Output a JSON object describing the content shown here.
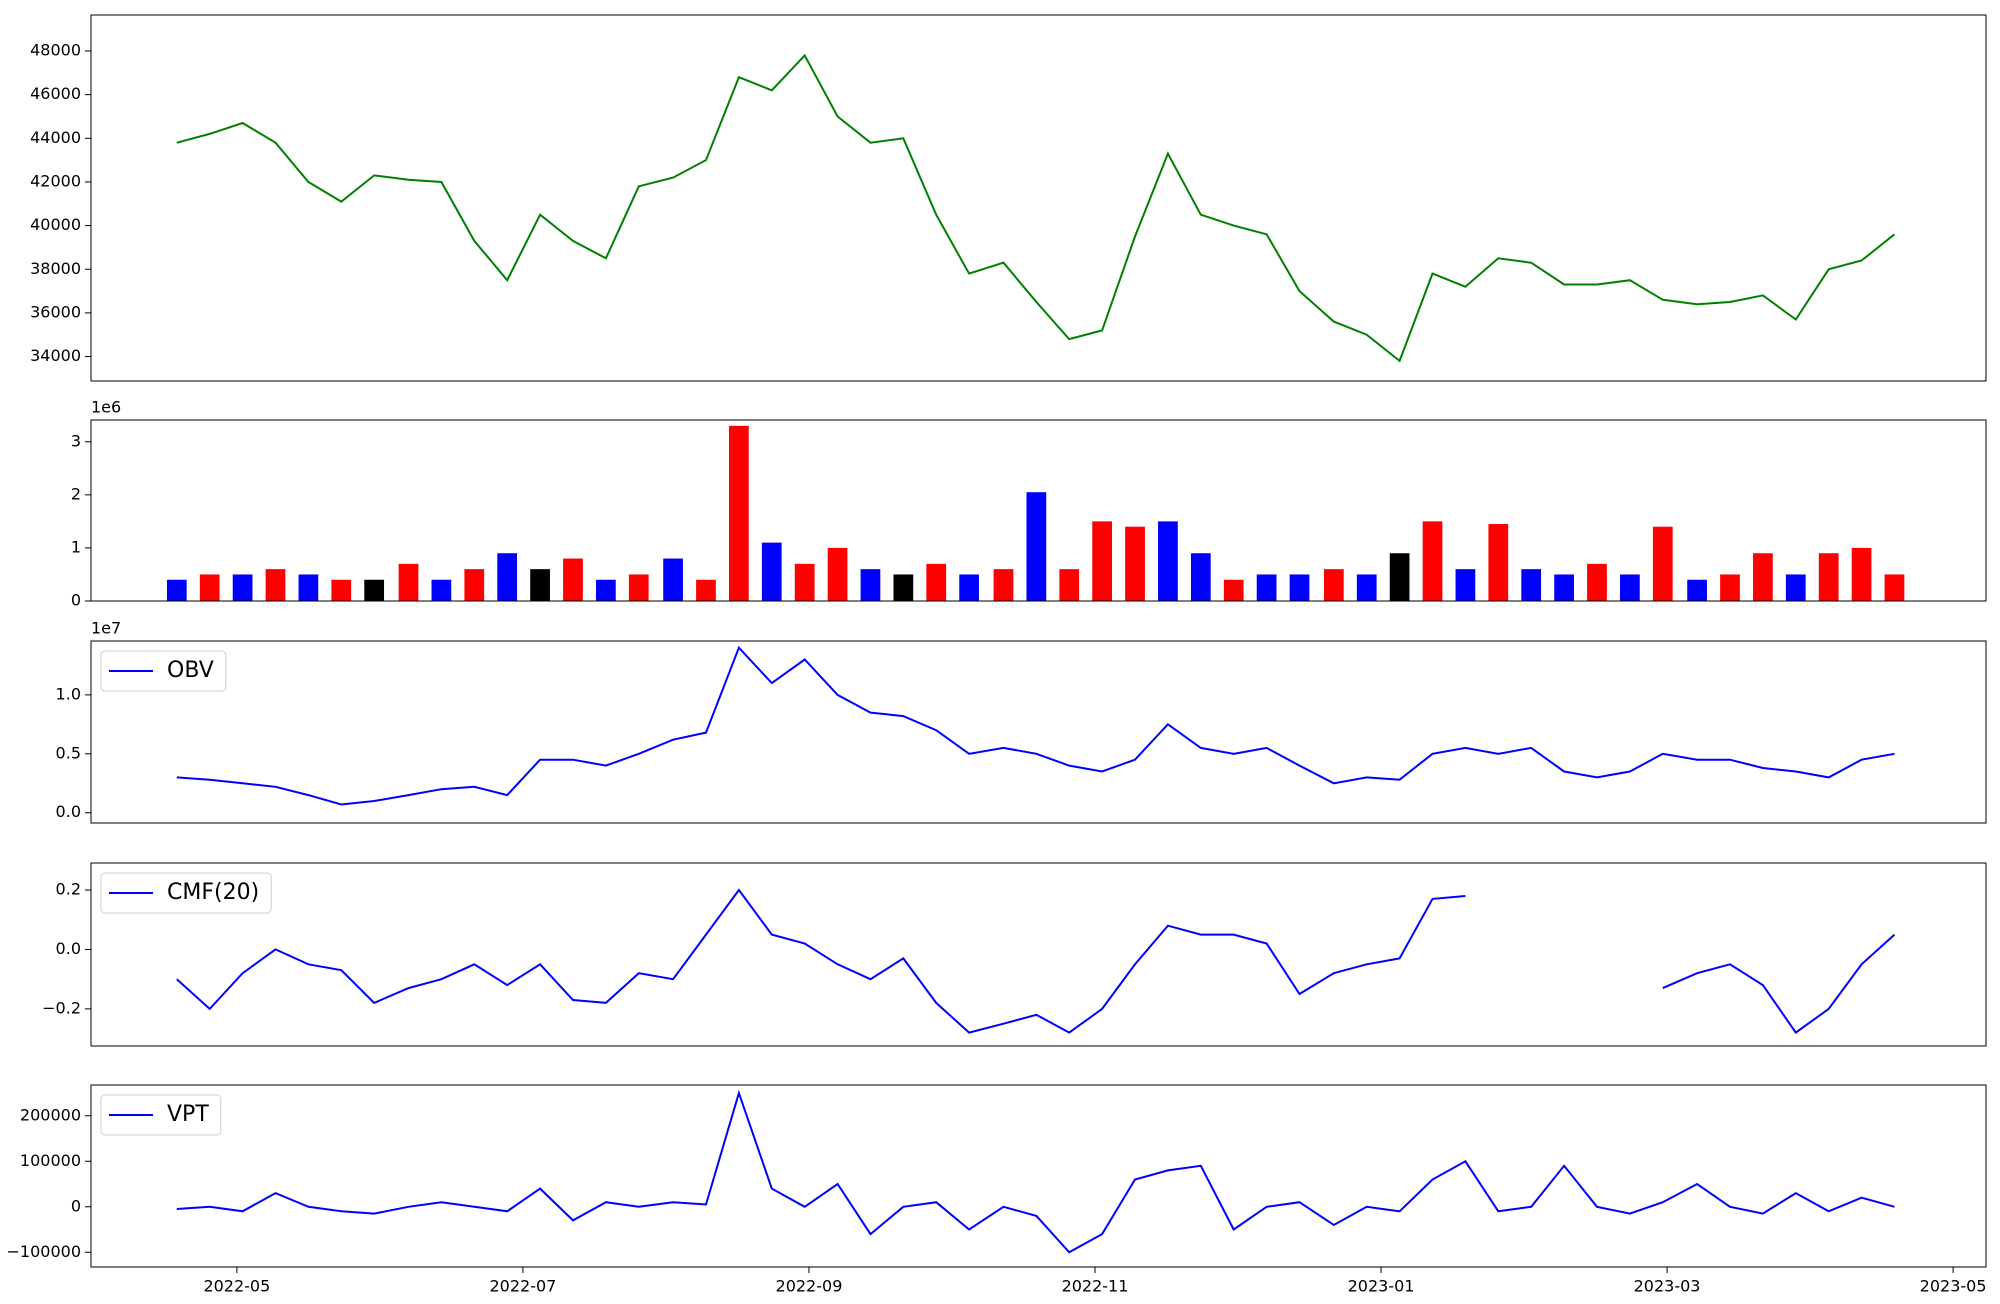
{
  "chart_data": [
    {
      "type": "line",
      "color": "#008000",
      "x": [
        -0.42,
        -0.19,
        0.04,
        0.27,
        0.5,
        0.73,
        0.96,
        1.2,
        1.43,
        1.66,
        1.89,
        2.12,
        2.35,
        2.58,
        2.81,
        3.05,
        3.28,
        3.51,
        3.74,
        3.97,
        4.2,
        4.43,
        4.66,
        4.89,
        5.12,
        5.36,
        5.59,
        5.82,
        6.05,
        6.28,
        6.51,
        6.74,
        6.97,
        7.2,
        7.43,
        7.67,
        7.9,
        8.13,
        8.36,
        8.59,
        8.82,
        9.05,
        9.28,
        9.51,
        9.74,
        9.97,
        10.21,
        10.44,
        10.67,
        10.9,
        11.13,
        11.36,
        11.59
      ],
      "values": [
        43800,
        44200,
        44700,
        43800,
        42000,
        41100,
        42300,
        42100,
        42000,
        39300,
        37500,
        40500,
        39300,
        38500,
        41800,
        42200,
        43000,
        46800,
        46200,
        47800,
        45000,
        43800,
        44000,
        40500,
        37800,
        38300,
        36500,
        34800,
        35200,
        39500,
        43300,
        40500,
        40000,
        39600,
        37000,
        35600,
        35000,
        33800,
        37800,
        37200,
        38500,
        38300,
        37300,
        37300,
        37500,
        36600,
        36400,
        36500,
        36800,
        35700,
        38000,
        38400,
        39600
      ],
      "xlim": [
        -1.02,
        12.23
      ],
      "ylim": [
        32880,
        49650
      ],
      "yticks": [
        34000,
        36000,
        38000,
        40000,
        42000,
        44000,
        46000,
        48000
      ]
    },
    {
      "type": "bar",
      "offset_label": "1e6",
      "x": [
        -0.42,
        -0.19,
        0.04,
        0.27,
        0.5,
        0.73,
        0.96,
        1.2,
        1.43,
        1.66,
        1.89,
        2.12,
        2.35,
        2.58,
        2.81,
        3.05,
        3.28,
        3.51,
        3.74,
        3.97,
        4.2,
        4.43,
        4.66,
        4.89,
        5.12,
        5.36,
        5.59,
        5.82,
        6.05,
        6.28,
        6.51,
        6.74,
        6.97,
        7.2,
        7.43,
        7.67,
        7.9,
        8.13,
        8.36,
        8.59,
        8.82,
        9.05,
        9.28,
        9.51,
        9.74,
        9.97,
        10.21,
        10.44,
        10.67,
        10.9,
        11.13,
        11.36,
        11.59
      ],
      "values": [
        0.4,
        0.5,
        0.5,
        0.6,
        0.5,
        0.4,
        0.4,
        0.7,
        0.4,
        0.6,
        0.9,
        0.6,
        0.8,
        0.4,
        0.5,
        0.8,
        0.4,
        3.3,
        1.1,
        0.7,
        1.0,
        0.6,
        0.5,
        0.7,
        0.5,
        0.6,
        2.05,
        0.6,
        1.5,
        1.4,
        1.5,
        0.9,
        0.4,
        0.5,
        0.5,
        0.6,
        0.5,
        0.9,
        1.5,
        0.6,
        1.45,
        0.6,
        0.5,
        0.7,
        0.5,
        1.4,
        0.4,
        0.5,
        0.9,
        0.5,
        0.9,
        1.0,
        0.5
      ],
      "colors": [
        "#0000ff",
        "#ff0000",
        "#0000ff",
        "#ff0000",
        "#0000ff",
        "#ff0000",
        "#000000",
        "#ff0000",
        "#0000ff",
        "#ff0000",
        "#0000ff",
        "#000000",
        "#ff0000",
        "#0000ff",
        "#ff0000",
        "#0000ff",
        "#ff0000",
        "#ff0000",
        "#0000ff",
        "#ff0000",
        "#ff0000",
        "#0000ff",
        "#000000",
        "#ff0000",
        "#0000ff",
        "#ff0000",
        "#0000ff",
        "#ff0000",
        "#ff0000",
        "#ff0000",
        "#0000ff",
        "#0000ff",
        "#ff0000",
        "#0000ff",
        "#0000ff",
        "#ff0000",
        "#0000ff",
        "#000000",
        "#ff0000",
        "#0000ff",
        "#ff0000",
        "#0000ff",
        "#0000ff",
        "#ff0000",
        "#0000ff",
        "#ff0000",
        "#0000ff",
        "#ff0000",
        "#ff0000",
        "#0000ff",
        "#ff0000",
        "#ff0000",
        "#ff0000"
      ],
      "xlim": [
        -1.02,
        12.23
      ],
      "ylim": [
        0,
        3.41
      ],
      "yticks": [
        0,
        1,
        2,
        3
      ]
    },
    {
      "type": "line",
      "offset_label": "1e7",
      "legend": "upper left",
      "x": [
        -0.42,
        -0.19,
        0.04,
        0.27,
        0.5,
        0.73,
        0.96,
        1.2,
        1.43,
        1.66,
        1.89,
        2.12,
        2.35,
        2.58,
        2.81,
        3.05,
        3.28,
        3.51,
        3.74,
        3.97,
        4.2,
        4.43,
        4.66,
        4.89,
        5.12,
        5.36,
        5.59,
        5.82,
        6.05,
        6.28,
        6.51,
        6.74,
        6.97,
        7.2,
        7.43,
        7.67,
        7.9,
        8.13,
        8.36,
        8.59,
        8.82,
        9.05,
        9.28,
        9.51,
        9.74,
        9.97,
        10.21,
        10.44,
        10.67,
        10.9,
        11.13,
        11.36,
        11.59
      ],
      "series": [
        {
          "name": "OBV",
          "color": "#0000ff",
          "values": [
            0.3,
            0.28,
            0.25,
            0.22,
            0.15,
            0.07,
            0.1,
            0.15,
            0.2,
            0.22,
            0.15,
            0.45,
            0.45,
            0.4,
            0.5,
            0.62,
            0.68,
            1.4,
            1.1,
            1.3,
            1.0,
            0.85,
            0.82,
            0.7,
            0.5,
            0.55,
            0.5,
            0.4,
            0.35,
            0.45,
            0.75,
            0.55,
            0.5,
            0.55,
            0.4,
            0.25,
            0.3,
            0.28,
            0.5,
            0.55,
            0.5,
            0.55,
            0.35,
            0.3,
            0.35,
            0.5,
            0.45,
            0.45,
            0.38,
            0.35,
            0.3,
            0.45,
            0.5
          ]
        }
      ],
      "xlim": [
        -1.02,
        12.23
      ],
      "ylim": [
        -0.087,
        1.457
      ],
      "yticks": [
        {
          "value": 0,
          "label": "0.0"
        },
        {
          "value": 0.5,
          "label": "0.5"
        },
        {
          "value": 1,
          "label": "1.0"
        }
      ]
    },
    {
      "type": "line",
      "legend": "upper left",
      "x": [
        -0.42,
        -0.19,
        0.04,
        0.27,
        0.5,
        0.73,
        0.96,
        1.2,
        1.43,
        1.66,
        1.89,
        2.12,
        2.35,
        2.58,
        2.81,
        3.05,
        3.28,
        3.51,
        3.74,
        3.97,
        4.2,
        4.43,
        4.66,
        4.89,
        5.12,
        5.36,
        5.59,
        5.82,
        6.05,
        6.28,
        6.51,
        6.74,
        6.97,
        7.2,
        7.43,
        7.67,
        7.9,
        8.13,
        8.36,
        8.59,
        8.82,
        9.05,
        9.28,
        9.51,
        9.74,
        9.97,
        10.21,
        10.44,
        10.67,
        10.9,
        11.13,
        11.36,
        11.59
      ],
      "series": [
        {
          "name": "CMF(20)",
          "color": "#0000ff",
          "values": [
            -0.1,
            -0.2,
            -0.08,
            0.0,
            -0.05,
            -0.07,
            -0.18,
            -0.13,
            -0.1,
            -0.05,
            -0.12,
            -0.05,
            -0.17,
            -0.18,
            -0.08,
            -0.1,
            0.05,
            0.2,
            0.05,
            0.02,
            -0.05,
            -0.1,
            -0.03,
            -0.18,
            -0.28,
            -0.25,
            -0.22,
            -0.28,
            -0.2,
            -0.05,
            0.08,
            0.05,
            0.05,
            0.02,
            -0.15,
            -0.08,
            -0.05,
            -0.03,
            0.17,
            0.18,
            null,
            null,
            null,
            null,
            null,
            -0.13,
            -0.08,
            -0.05,
            -0.12,
            -0.28,
            -0.2,
            -0.05,
            0.05
          ]
        }
      ],
      "xlim": [
        -1.02,
        12.23
      ],
      "ylim": [
        -0.325,
        0.291
      ],
      "yticks": [
        {
          "value": -0.2,
          "label": "−0.2"
        },
        {
          "value": 0,
          "label": "0.0"
        },
        {
          "value": 0.2,
          "label": "0.2"
        }
      ]
    },
    {
      "type": "line",
      "legend": "upper left",
      "x": [
        -0.42,
        -0.19,
        0.04,
        0.27,
        0.5,
        0.73,
        0.96,
        1.2,
        1.43,
        1.66,
        1.89,
        2.12,
        2.35,
        2.58,
        2.81,
        3.05,
        3.28,
        3.51,
        3.74,
        3.97,
        4.2,
        4.43,
        4.66,
        4.89,
        5.12,
        5.36,
        5.59,
        5.82,
        6.05,
        6.28,
        6.51,
        6.74,
        6.97,
        7.2,
        7.43,
        7.67,
        7.9,
        8.13,
        8.36,
        8.59,
        8.82,
        9.05,
        9.28,
        9.51,
        9.74,
        9.97,
        10.21,
        10.44,
        10.67,
        10.9,
        11.13,
        11.36,
        11.59
      ],
      "series": [
        {
          "name": "VPT",
          "color": "#0000ff",
          "values": [
            -5000,
            0,
            -10000,
            30000,
            0,
            -10000,
            -15000,
            0,
            10000,
            0,
            -10000,
            40000,
            -30000,
            10000,
            0,
            10000,
            5000,
            250000,
            40000,
            0,
            50000,
            -60000,
            0,
            10000,
            -50000,
            0,
            -20000,
            -100000,
            -60000,
            60000,
            80000,
            90000,
            -50000,
            0,
            10000,
            -40000,
            0,
            -10000,
            60000,
            100000,
            -10000,
            0,
            90000,
            0,
            -15000,
            10000,
            50000,
            0,
            -15000,
            30000,
            -10000,
            20000,
            0
          ]
        }
      ],
      "xlim": [
        -1.02,
        12.23
      ],
      "ylim": [
        -132400,
        267600
      ],
      "yticks": [
        {
          "value": -100000,
          "label": "−100000"
        },
        0,
        100000,
        200000
      ],
      "xticks": [
        {
          "value": 0,
          "label": "2022-05"
        },
        {
          "value": 2,
          "label": "2022-07"
        },
        {
          "value": 4,
          "label": "2022-09"
        },
        {
          "value": 6,
          "label": "2022-11"
        },
        {
          "value": 8,
          "label": "2023-01"
        },
        {
          "value": 10,
          "label": "2023-03"
        },
        {
          "value": 12,
          "label": "2023-05"
        }
      ]
    }
  ]
}
